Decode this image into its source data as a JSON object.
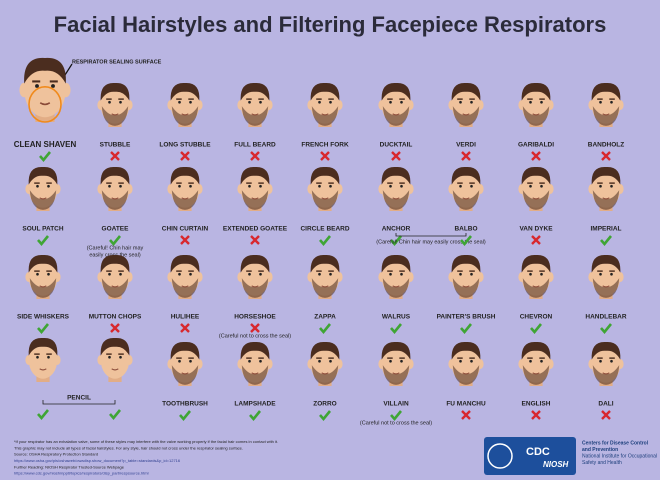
{
  "title": "Facial Hairstyles and Filtering Facepiece Respirators",
  "sealing_label": "RESPIRATOR SEALING SURFACE",
  "rows": [
    {
      "styles": [
        {
          "name": "CLEAN SHAVEN",
          "allowed": true
        },
        {
          "name": "STUBBLE",
          "allowed": false
        },
        {
          "name": "LONG STUBBLE",
          "allowed": false
        },
        {
          "name": "FULL BEARD",
          "allowed": false
        },
        {
          "name": "FRENCH FORK",
          "allowed": false
        },
        {
          "name": "DUCKTAIL",
          "allowed": false
        },
        {
          "name": "VERDI",
          "allowed": false
        },
        {
          "name": "GARIBALDI",
          "allowed": false
        },
        {
          "name": "BANDHOLZ",
          "allowed": false
        }
      ]
    },
    {
      "styles": [
        {
          "name": "SOUL PATCH",
          "allowed": true
        },
        {
          "name": "GOATEE",
          "allowed": true,
          "note": [
            "(Careful! Chin hair may",
            "easily cross the seal)"
          ]
        },
        {
          "name": "CHIN CURTAIN",
          "allowed": false
        },
        {
          "name": "EXTENDED GOATEE",
          "allowed": false
        },
        {
          "name": "CIRCLE BEARD",
          "allowed": true
        },
        {
          "name": "ANCHOR",
          "allowed": true,
          "note": [
            "(Careful! Chin hair may easily cross the seal)"
          ]
        },
        {
          "name": "BALBO",
          "allowed": true
        },
        {
          "name": "VAN DYKE",
          "allowed": false
        },
        {
          "name": "IMPERIAL",
          "allowed": true
        }
      ]
    },
    {
      "styles": [
        {
          "name": "SIDE WHISKERS",
          "allowed": true
        },
        {
          "name": "MUTTON CHOPS",
          "allowed": false
        },
        {
          "name": "HULIHEE",
          "allowed": false
        },
        {
          "name": "HORSESHOE",
          "allowed": false,
          "note": [
            "(Careful not to cross the seal)"
          ]
        },
        {
          "name": "ZAPPA",
          "allowed": true
        },
        {
          "name": "WALRUS",
          "allowed": true
        },
        {
          "name": "PAINTER'S BRUSH",
          "allowed": true
        },
        {
          "name": "CHEVRON",
          "allowed": true
        },
        {
          "name": "HANDLEBAR",
          "allowed": true
        }
      ]
    },
    {
      "styles": [
        {
          "name": "PENCIL",
          "allowed": [
            true,
            true
          ]
        },
        {
          "name": "TOOTHBRUSH",
          "allowed": true
        },
        {
          "name": "LAMPSHADE",
          "allowed": true
        },
        {
          "name": "ZORRO",
          "allowed": true
        },
        {
          "name": "VILLAIN",
          "allowed": true,
          "note": [
            "(Careful not to cross the seal)"
          ]
        },
        {
          "name": "FU MANCHU",
          "allowed": false
        },
        {
          "name": "ENGLISH",
          "allowed": false
        },
        {
          "name": "DALI",
          "allowed": false
        }
      ]
    }
  ],
  "footer": [
    "*If your respirator has an exhalation valve, some of these styles may interfere with the valve working properly if the facial hair comes in contact with it.",
    "This graphic may not include all types of facial hairstyles. For any style, hair should not cross under the respirator sealing surface.",
    "Source: OSHA Respiratory Protection Standard",
    "https://www.osha.gov/pls/oshaweb/owadisp.show_document?p_table=standards&p_id=12716",
    "Further Reading: NIOSH Respirator Trusted-Source Webpage",
    "https://www.cdc.gov/niosh/npptl/topics/respirators/disp_part/respsource.html"
  ],
  "logo": {
    "cdc": "CDC",
    "niosh": "NIOSH",
    "agency": [
      "Centers for Disease Control",
      "and Prevention",
      "National Institute for Occupational",
      "Safety and Health"
    ]
  }
}
